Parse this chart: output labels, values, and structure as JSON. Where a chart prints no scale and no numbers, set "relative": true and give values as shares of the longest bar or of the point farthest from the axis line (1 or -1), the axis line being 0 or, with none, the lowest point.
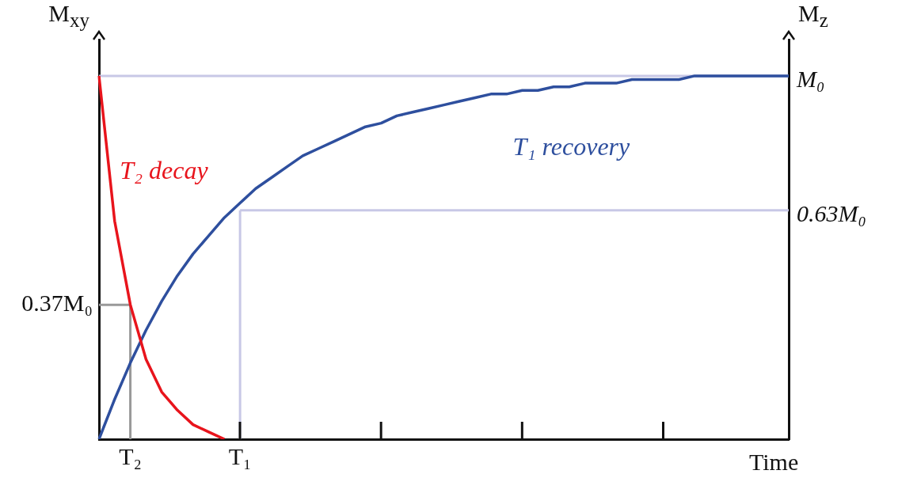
{
  "chart_data": {
    "type": "line",
    "relative": true,
    "xlabel": "Time",
    "ylabel": "M$_{xy}$",
    "y2label": "M$_{z}$",
    "categories": [
      null,
      null,
      "T₂",
      null,
      null,
      null,
      null,
      null,
      null,
      "T₁",
      null,
      null,
      null,
      null,
      null,
      null,
      null,
      null,
      null,
      null,
      null,
      null,
      null,
      null,
      null,
      null,
      null,
      null,
      null,
      null,
      null,
      null,
      null,
      null,
      null,
      null,
      null,
      null,
      null,
      null,
      null,
      null,
      null,
      null,
      null
    ],
    "grid": false,
    "legend": false,
    "marker": "none",
    "line_style": "solid",
    "ref_lines": [
      {
        "axis": "y",
        "value": 1,
        "label": "M₀",
        "color": "#c8c8e6"
      },
      {
        "axis": "y",
        "value": 0.37,
        "label": "0.37M₀",
        "color": "#999999"
      },
      {
        "axis": "x",
        "value": "T₂",
        "color": "#999999"
      },
      {
        "axis": "y",
        "value": 0.63,
        "label": "0.63M₀",
        "color": "#c8c8e6"
      },
      {
        "axis": "x",
        "value": "T₁",
        "color": "#c8c8e6"
      }
    ],
    "series": [
      {
        "name": "T₂ decay",
        "color": "#e8141c",
        "values": [
          1,
          0.6,
          0.37,
          0.22,
          0.13,
          0.08,
          0.04,
          0.02,
          0,
          null,
          null,
          null,
          null,
          null,
          null,
          null,
          null,
          null,
          null,
          null,
          null,
          null,
          null,
          null,
          null,
          null,
          null,
          null,
          null,
          null,
          null,
          null,
          null,
          null,
          null,
          null,
          null,
          null,
          null,
          null,
          null,
          null,
          null,
          null,
          null
        ]
      },
      {
        "name": "T₁ recovery",
        "color": "#2e4f9e",
        "values": [
          0,
          0.11,
          0.21,
          0.3,
          0.38,
          0.45,
          0.51,
          0.56,
          0.61,
          0.65,
          0.69,
          0.72,
          0.75,
          0.78,
          0.8,
          0.82,
          0.84,
          0.86,
          0.87,
          0.89,
          0.9,
          0.91,
          0.92,
          0.93,
          0.94,
          0.95,
          0.95,
          0.96,
          0.96,
          0.97,
          0.97,
          0.98,
          0.98,
          0.98,
          0.99,
          0.99,
          0.99,
          0.99,
          1,
          1,
          1,
          1,
          1,
          1,
          1
        ]
      }
    ]
  }
}
